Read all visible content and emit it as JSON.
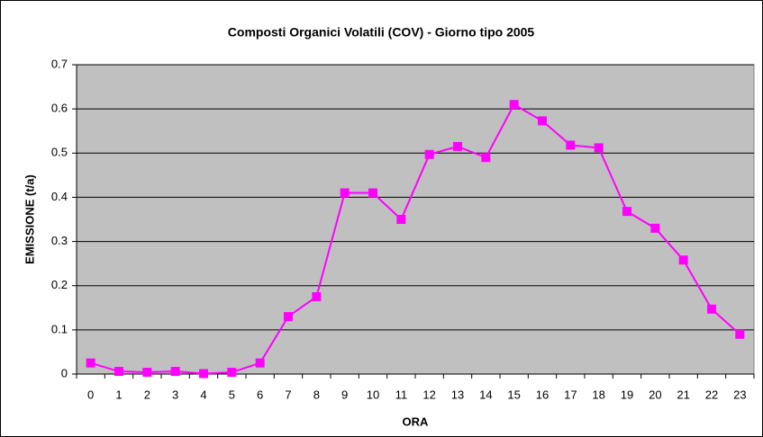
{
  "chart_data": {
    "type": "line",
    "title": "Composti Organici Volatili (COV) - Giorno tipo 2005",
    "x_label": "ORA",
    "y_label": "EMISSIONE (t/a)",
    "categories": [
      "0",
      "1",
      "2",
      "3",
      "4",
      "5",
      "6",
      "7",
      "8",
      "9",
      "10",
      "11",
      "12",
      "13",
      "14",
      "15",
      "16",
      "17",
      "18",
      "19",
      "20",
      "21",
      "22",
      "23"
    ],
    "series": [
      {
        "name": "COV",
        "color": "#ff00ff",
        "values": [
          0.025,
          0.006,
          0.004,
          0.006,
          0.001,
          0.004,
          0.025,
          0.13,
          0.175,
          0.41,
          0.41,
          0.35,
          0.497,
          0.515,
          0.49,
          0.61,
          0.573,
          0.518,
          0.512,
          0.368,
          0.33,
          0.258,
          0.147,
          0.09
        ]
      }
    ],
    "ylim": [
      0,
      0.7
    ],
    "yticks": [
      0,
      0.1,
      0.2,
      0.3,
      0.4,
      0.5,
      0.6,
      0.7
    ],
    "grid": true,
    "plot_background": "#c0c0c0"
  }
}
